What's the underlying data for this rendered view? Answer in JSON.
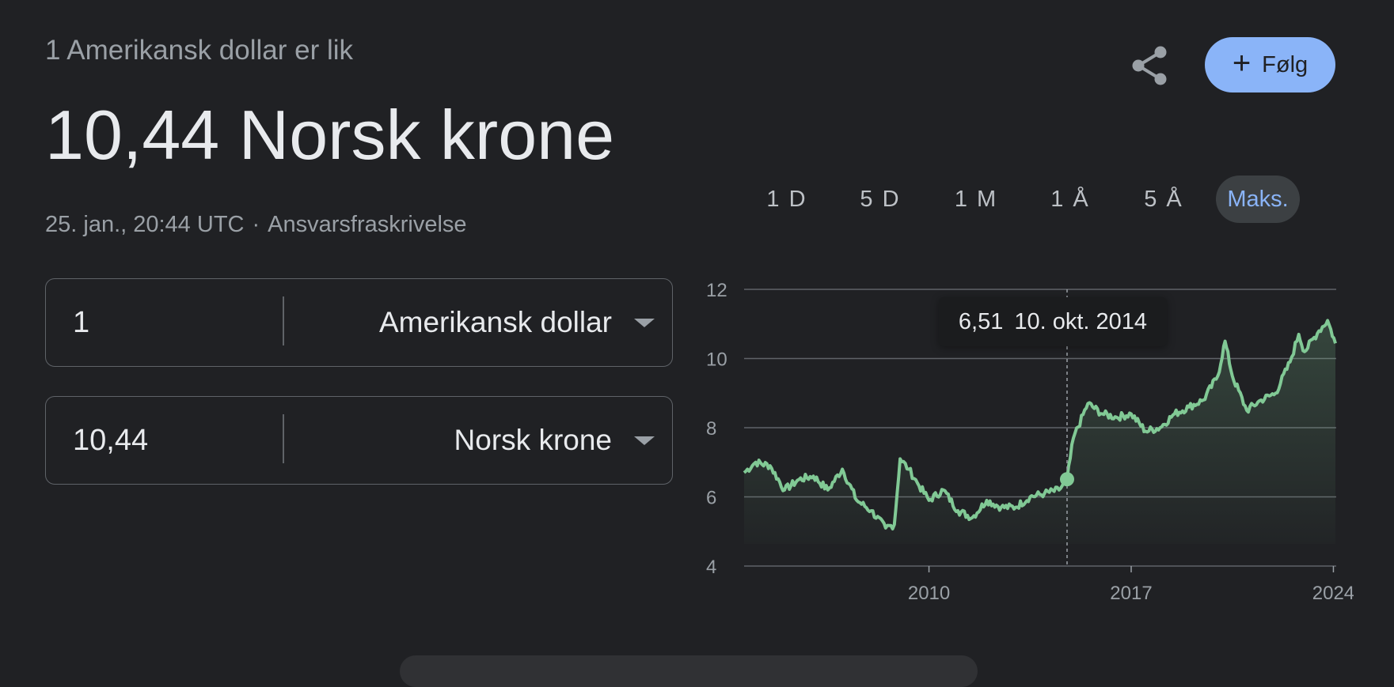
{
  "header": {
    "subtitle": "1 Amerikansk dollar er lik",
    "value": "10,44 Norsk krone",
    "timestamp": "25. jan., 20:44 UTC",
    "separator": "·",
    "disclaimer": "Ansvarsfraskrivelse"
  },
  "actions": {
    "share_icon": "share-icon",
    "follow_label": "Følg",
    "follow_icon": "plus-icon"
  },
  "converter": {
    "from_amount": "1",
    "from_currency": "Amerikansk dollar",
    "to_amount": "10,44",
    "to_currency": "Norsk krone"
  },
  "ranges": [
    "1 D",
    "5 D",
    "1 M",
    "1 Å",
    "5 Å",
    "Maks."
  ],
  "active_range": "Maks.",
  "tooltip": {
    "value": "6,51",
    "date": "10. okt. 2014"
  },
  "colors": {
    "line": "#81c995",
    "accent": "#8ab4f8",
    "background": "#202124"
  },
  "chart_data": {
    "type": "line",
    "ylim": [
      4,
      12
    ],
    "yticks": [
      "4",
      "6",
      "8",
      "10",
      "12"
    ],
    "xticks": [
      "2010",
      "2017",
      "2024"
    ],
    "grid": true,
    "series": [
      {
        "x": [
          2003.6,
          2004.0,
          2004.5,
          2005.0,
          2005.5,
          2006.0,
          2006.5,
          2007.0,
          2007.5,
          2008.0,
          2008.5,
          2008.8,
          2009.0,
          2009.3,
          2009.6,
          2010.0,
          2010.5,
          2011.0,
          2011.5,
          2012.0,
          2012.5,
          2013.0,
          2013.5,
          2014.0,
          2014.5,
          2014.78,
          2015.0,
          2015.5,
          2016.0,
          2016.5,
          2017.0,
          2017.5,
          2018.0,
          2018.5,
          2019.0,
          2019.5,
          2020.0,
          2020.25,
          2020.5,
          2021.0,
          2021.5,
          2022.0,
          2022.5,
          2022.8,
          2023.0,
          2023.5,
          2023.8,
          2024.07
        ],
        "y": [
          6.7,
          7.0,
          6.9,
          6.2,
          6.5,
          6.6,
          6.2,
          6.8,
          5.9,
          5.6,
          5.1,
          5.2,
          7.1,
          6.8,
          6.4,
          5.9,
          6.2,
          5.6,
          5.4,
          5.9,
          5.7,
          5.7,
          6.0,
          6.1,
          6.2,
          6.51,
          7.7,
          8.7,
          8.4,
          8.3,
          8.4,
          7.9,
          8.0,
          8.4,
          8.6,
          8.8,
          9.5,
          10.5,
          9.5,
          8.5,
          8.8,
          9.0,
          9.9,
          10.7,
          10.2,
          10.8,
          11.1,
          10.44
        ]
      }
    ],
    "highlight": {
      "x": 2014.78,
      "y": 6.51
    }
  }
}
